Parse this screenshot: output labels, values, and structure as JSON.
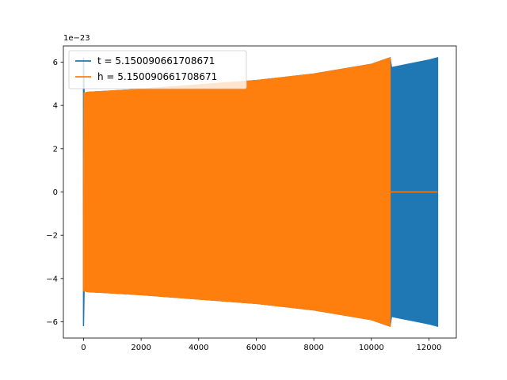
{
  "chart_data": {
    "type": "line",
    "title": "",
    "xlabel": "",
    "ylabel": "",
    "y_offset_label": "1e−23",
    "xlim": [
      -700,
      12950
    ],
    "ylim": [
      -6.75,
      6.75
    ],
    "x_ticks": [
      0,
      2000,
      4000,
      6000,
      8000,
      10000,
      12000
    ],
    "y_ticks": [
      -6,
      -4,
      -2,
      0,
      2,
      4,
      6
    ],
    "x_tick_labels": [
      "0",
      "2000",
      "4000",
      "6000",
      "8000",
      "10000",
      "12000"
    ],
    "y_tick_labels": [
      "−6",
      "−4",
      "−2",
      "0",
      "2",
      "4",
      "6"
    ],
    "grid": false,
    "legend_position": "top-left",
    "series": [
      {
        "name": "t = 5.150090661708671",
        "color": "#1f77b4",
        "envelope": {
          "x": [
            0,
            20,
            40,
            100,
            2000,
            4000,
            6000,
            8000,
            10000,
            10650,
            10700,
            12000,
            12300
          ],
          "upper": [
            6.2,
            4.5,
            4.55,
            4.6,
            4.75,
            4.95,
            5.15,
            5.45,
            5.9,
            6.2,
            5.75,
            6.1,
            6.2
          ],
          "lower": [
            -6.2,
            -4.5,
            -4.55,
            -4.6,
            -4.75,
            -4.95,
            -5.15,
            -5.45,
            -5.9,
            -6.2,
            -5.75,
            -6.1,
            -6.2
          ]
        }
      },
      {
        "name": "h = 5.150090661708671",
        "color": "#ff7f0e",
        "envelope": {
          "x": [
            0,
            20,
            40,
            100,
            2000,
            4000,
            6000,
            8000,
            10000,
            10650
          ],
          "upper": [
            -1.2,
            4.6,
            4.55,
            4.6,
            4.75,
            4.95,
            5.15,
            5.45,
            5.9,
            6.2
          ],
          "lower": [
            -4.6,
            -4.5,
            -4.55,
            -4.6,
            -4.75,
            -4.95,
            -5.15,
            -5.45,
            -5.9,
            -6.2
          ]
        },
        "tail": {
          "x": [
            10650,
            12300
          ],
          "y": [
            0,
            0
          ]
        }
      }
    ]
  }
}
